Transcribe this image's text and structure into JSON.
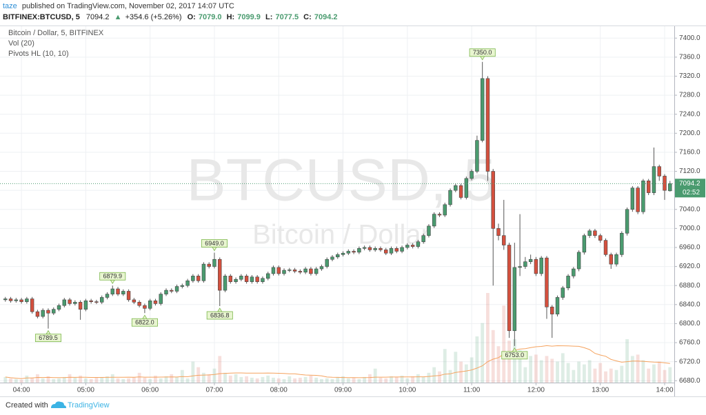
{
  "header": {
    "author": "taze",
    "published": "published on TradingView.com, November 02, 2017 14:07 UTC",
    "symbol": "BITFINEX:BTCUSD, 5",
    "last": "7094.2",
    "arrow": "▲",
    "change": "+354.6 (+5.26%)",
    "o_label": "O:",
    "o": "7079.0",
    "h_label": "H:",
    "h": "7099.9",
    "l_label": "L:",
    "l": "7077.5",
    "c_label": "C:",
    "c": "7094.2"
  },
  "chart_data": {
    "type": "candlestick",
    "legend": [
      "Bitcoin / Dollar, 5, BITFINEX",
      "Vol (20)",
      "Pivots HL (10, 10)"
    ],
    "watermark": {
      "symbol": "BTCUSD, 5",
      "description": "Bitcoin / Dollar"
    },
    "up_color": "#4a9b6f",
    "down_color": "#d4503e",
    "volume_ma_color": "#f5a25d",
    "volume_ma_period": 20,
    "grid": true,
    "open": [
      6850,
      6852,
      6848,
      6850,
      6846,
      6852,
      6825,
      6815,
      6828,
      6822,
      6830,
      6838,
      6850,
      6842,
      6845,
      6830,
      6848,
      6846,
      6845,
      6855,
      6862,
      6873,
      6862,
      6868,
      6850,
      6845,
      6838,
      6832,
      6848,
      6842,
      6862,
      6870,
      6868,
      6878,
      6880,
      6890,
      6900,
      6890,
      6925,
      6920,
      6935,
      6870,
      6900,
      6888,
      6893,
      6900,
      6888,
      6898,
      6888,
      6895,
      6905,
      6918,
      6905,
      6912,
      6913,
      6910,
      6908,
      6915,
      6905,
      6915,
      6920,
      6935,
      6940,
      6945,
      6948,
      6952,
      6950,
      6958,
      6960,
      6955,
      6958,
      6955,
      6948,
      6958,
      6952,
      6960,
      6965,
      6962,
      6972,
      6985,
      7005,
      7030,
      7028,
      7050,
      7080,
      7090,
      7065,
      7105,
      7120,
      7185,
      7315,
      7120,
      7000,
      6985,
      6965,
      6785,
      6918,
      6920,
      6930,
      6935,
      6905,
      6938,
      6835,
      6820,
      6855,
      6875,
      6900,
      6915,
      6950,
      6985,
      6995,
      6985,
      6975,
      6945,
      6925,
      6945,
      6990,
      7040,
      7085,
      7035,
      7100,
      7075,
      7130,
      7110,
      7079.0
    ],
    "high": [
      6856,
      6856,
      6854,
      6854,
      6856,
      6856,
      6829,
      6832,
      6832,
      6834,
      6842,
      6854,
      6854,
      6849,
      6849,
      6852,
      6852,
      6850,
      6859,
      6866,
      6879.9,
      6877,
      6872,
      6872,
      6854,
      6849,
      6842,
      6852,
      6852,
      6866,
      6874,
      6874,
      6882,
      6884,
      6894,
      6904,
      6904,
      6929,
      6929,
      6949.0,
      6939,
      6904,
      6904,
      6897,
      6904,
      6904,
      6902,
      6902,
      6899,
      6909,
      6922,
      6922,
      6916,
      6917,
      6917,
      6914,
      6919,
      6919,
      6919,
      6924,
      6939,
      6944,
      6949,
      6952,
      6956,
      6956,
      6962,
      6964,
      6964,
      6962,
      6962,
      6959,
      6962,
      6962,
      6964,
      6969,
      6969,
      6976,
      6989,
      7009,
      7034,
      7034,
      7054,
      7084,
      7094,
      7094,
      7109,
      7124,
      7195,
      7350.0,
      7320,
      7125,
      7010,
      7060,
      6970,
      6970,
      7030,
      6940,
      6945,
      6940,
      6942,
      6942,
      6839,
      6859,
      6879,
      6904,
      6919,
      6954,
      6989,
      6999,
      6999,
      6989,
      6979,
      6949,
      6949,
      6994,
      7044,
      7089,
      7089,
      7104,
      7104,
      7170,
      7134,
      7114,
      7099.9
    ],
    "low": [
      6846,
      6844,
      6844,
      6842,
      6842,
      6821,
      6811,
      6811,
      6789.5,
      6818,
      6826,
      6834,
      6838,
      6838,
      6808,
      6826,
      6842,
      6841,
      6841,
      6851,
      6858,
      6858,
      6858,
      6846,
      6841,
      6834,
      6822.0,
      6828,
      6838,
      6838,
      6858,
      6864,
      6864,
      6874,
      6876,
      6886,
      6886,
      6886,
      6916,
      6916,
      6836.8,
      6866,
      6884,
      6884,
      6889,
      6884,
      6884,
      6884,
      6884,
      6891,
      6901,
      6901,
      6901,
      6908,
      6906,
      6904,
      6904,
      6901,
      6901,
      6911,
      6916,
      6931,
      6936,
      6941,
      6944,
      6946,
      6946,
      6954,
      6951,
      6951,
      6951,
      6944,
      6944,
      6948,
      6948,
      6956,
      6958,
      6958,
      6968,
      6981,
      7001,
      7024,
      7024,
      7046,
      7076,
      7061,
      7061,
      7101,
      7116,
      7181,
      7100,
      6880,
      6975,
      6955,
      6770,
      6753.0,
      6900,
      6915,
      6925,
      6900,
      6900,
      6810,
      6770,
      6815,
      6850,
      6870,
      6895,
      6910,
      6945,
      6980,
      6980,
      6970,
      6941,
      6915,
      6920,
      6940,
      6985,
      7035,
      7030,
      7030,
      7070,
      7070,
      7100,
      7060,
      7077.5
    ],
    "close": [
      6852,
      6848,
      6850,
      6846,
      6852,
      6825,
      6815,
      6828,
      6822,
      6830,
      6838,
      6850,
      6842,
      6845,
      6830,
      6848,
      6846,
      6845,
      6855,
      6862,
      6873,
      6862,
      6868,
      6850,
      6845,
      6838,
      6832,
      6848,
      6842,
      6862,
      6870,
      6868,
      6878,
      6880,
      6890,
      6900,
      6890,
      6925,
      6920,
      6935,
      6870,
      6900,
      6888,
      6893,
      6900,
      6888,
      6898,
      6888,
      6895,
      6905,
      6918,
      6905,
      6912,
      6913,
      6910,
      6908,
      6915,
      6905,
      6915,
      6920,
      6935,
      6940,
      6945,
      6948,
      6952,
      6950,
      6958,
      6960,
      6955,
      6958,
      6955,
      6948,
      6958,
      6952,
      6960,
      6965,
      6962,
      6972,
      6985,
      7005,
      7030,
      7028,
      7050,
      7080,
      7090,
      7065,
      7105,
      7120,
      7185,
      7315,
      7120,
      7000,
      6985,
      6965,
      6785,
      6918,
      6920,
      6930,
      6935,
      6905,
      6938,
      6835,
      6820,
      6855,
      6875,
      6900,
      6915,
      6950,
      6985,
      6995,
      6985,
      6975,
      6945,
      6925,
      6945,
      6990,
      7040,
      7085,
      7035,
      7100,
      7075,
      7130,
      7110,
      7080,
      7094.2
    ],
    "volume": [
      8,
      6,
      5,
      4,
      10,
      7,
      12,
      6,
      9,
      5,
      6,
      8,
      12,
      7,
      10,
      6,
      5,
      7,
      8,
      9,
      12,
      6,
      5,
      6,
      8,
      14,
      7,
      5,
      10,
      6,
      9,
      12,
      8,
      18,
      6,
      30,
      22,
      14,
      12,
      20,
      38,
      14,
      10,
      12,
      8,
      9,
      7,
      6,
      8,
      10,
      7,
      6,
      5,
      9,
      6,
      7,
      8,
      10,
      7,
      5,
      6,
      5,
      8,
      9,
      6,
      7,
      5,
      8,
      12,
      20,
      7,
      6,
      9,
      8,
      10,
      6,
      9,
      12,
      8,
      14,
      22,
      16,
      48,
      18,
      44,
      30,
      26,
      36,
      66,
      85,
      128,
      75,
      52,
      110,
      60,
      62,
      46,
      22,
      38,
      40,
      32,
      38,
      34,
      30,
      42,
      28,
      18,
      30,
      26,
      32,
      20,
      28,
      16,
      20,
      18,
      24,
      62,
      38,
      40,
      32,
      20,
      26,
      30,
      18,
      22
    ],
    "xlim": [
      -1,
      124.8
    ],
    "xticks": [
      {
        "value": 3,
        "label": "04:00"
      },
      {
        "value": 15,
        "label": "05:00"
      },
      {
        "value": 27,
        "label": "06:00"
      },
      {
        "value": 39,
        "label": "07:00"
      },
      {
        "value": 51,
        "label": "08:00"
      },
      {
        "value": 63,
        "label": "09:00"
      },
      {
        "value": 75,
        "label": "10:00"
      },
      {
        "value": 87,
        "label": "11:00"
      },
      {
        "value": 99,
        "label": "12:00"
      },
      {
        "value": 111,
        "label": "13:00"
      },
      {
        "value": 123,
        "label": "14:00"
      }
    ],
    "ylim": [
      6676,
      7425
    ],
    "yticks": [
      {
        "value": 6680,
        "label": "6680.0"
      },
      {
        "value": 6720,
        "label": "6720.0"
      },
      {
        "value": 6760,
        "label": "6760.0"
      },
      {
        "value": 6800,
        "label": "6800.0"
      },
      {
        "value": 6840,
        "label": "6840.0"
      },
      {
        "value": 6880,
        "label": "6880.0"
      },
      {
        "value": 6920,
        "label": "6920.0"
      },
      {
        "value": 6960,
        "label": "6960.0"
      },
      {
        "value": 7000,
        "label": "7000.0"
      },
      {
        "value": 7040,
        "label": "7040.0"
      },
      {
        "value": 7080,
        "label": "7080.0"
      },
      {
        "value": 7120,
        "label": "7120.0"
      },
      {
        "value": 7160,
        "label": "7160.0"
      },
      {
        "value": 7200,
        "label": "7200.0"
      },
      {
        "value": 7240,
        "label": "7240.0"
      },
      {
        "value": 7280,
        "label": "7280.0"
      },
      {
        "value": 7320,
        "label": "7320.0"
      },
      {
        "value": 7360,
        "label": "7360.0"
      },
      {
        "value": 7400,
        "label": "7400.0"
      }
    ],
    "last_price": 7094.2,
    "countdown": "02:52",
    "pivots": [
      {
        "index": 8,
        "value": 6789.5,
        "kind": "low"
      },
      {
        "index": 20,
        "value": 6879.9,
        "kind": "high"
      },
      {
        "index": 26,
        "value": 6822.0,
        "label": "6822.0",
        "kind": "low"
      },
      {
        "index": 39,
        "value": 6949.0,
        "label": "6949.0",
        "kind": "high"
      },
      {
        "index": 40,
        "value": 6836.8,
        "kind": "low"
      },
      {
        "index": 89,
        "value": 7350.0,
        "label": "7350.0",
        "kind": "high"
      },
      {
        "index": 95,
        "value": 6753.0,
        "label": "6753.0",
        "kind": "low"
      }
    ]
  },
  "footer": {
    "created": "Created with",
    "brand": "TradingView"
  }
}
